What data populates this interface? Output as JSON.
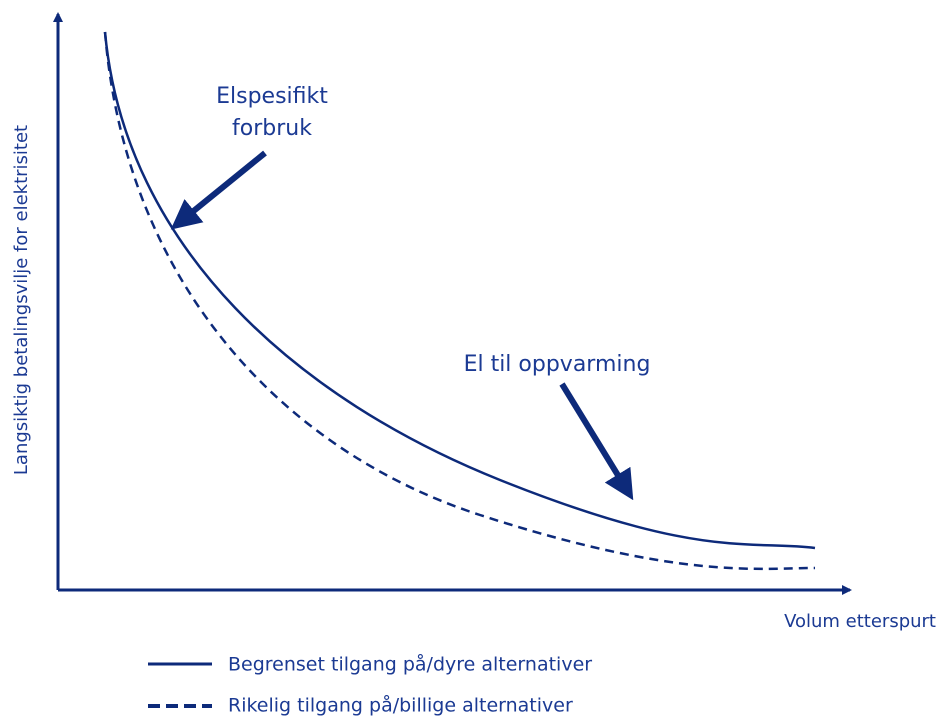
{
  "y_axis_label": "Langsiktig betalingsvilje for elektrisitet",
  "x_axis_label": "Volum etterspurt",
  "annotations": [
    "Elspesifikt",
    "forbruk",
    "El til oppvarming"
  ],
  "legend": [
    "Begrenset tilgang på/dyre alternativer",
    "Rikelig tilgang på/billige alternativer"
  ]
}
